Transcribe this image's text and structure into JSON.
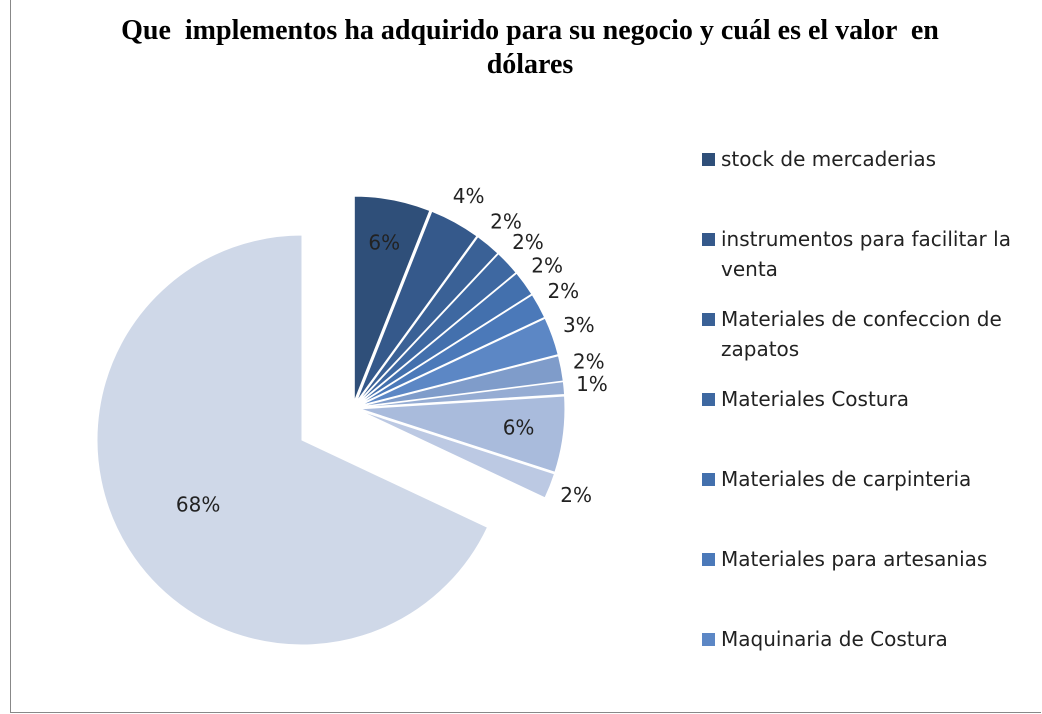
{
  "chart_data": {
    "type": "pie",
    "title": "Que  implementos ha adquirido para su negocio y cuál es el valor  en    dólares",
    "categories": [
      "stock de mercaderias",
      "instrumentos para facilitar la venta",
      "Materiales de confeccion de zapatos",
      "Materiales Costura",
      "Materiales de carpinteria",
      "Materiales para artesanias",
      "Maquinaria de Costura",
      null,
      null,
      null,
      null,
      null
    ],
    "values": [
      6,
      4,
      2,
      2,
      2,
      2,
      3,
      2,
      1,
      6,
      2,
      68
    ],
    "value_labels": [
      "6%",
      "4%",
      "2%",
      "2%",
      "2%",
      "2%",
      "3%",
      "2%",
      "1%",
      "6%",
      "2%",
      "68%"
    ],
    "colors": [
      "#2f4f79",
      "#35598b",
      "#3a6196",
      "#3e68a1",
      "#4370ad",
      "#4b79b9",
      "#5c87c5",
      "#7f9cca",
      "#95acd3",
      "#a9bbdc",
      "#bcc9e3",
      "#cfd8e8"
    ]
  }
}
